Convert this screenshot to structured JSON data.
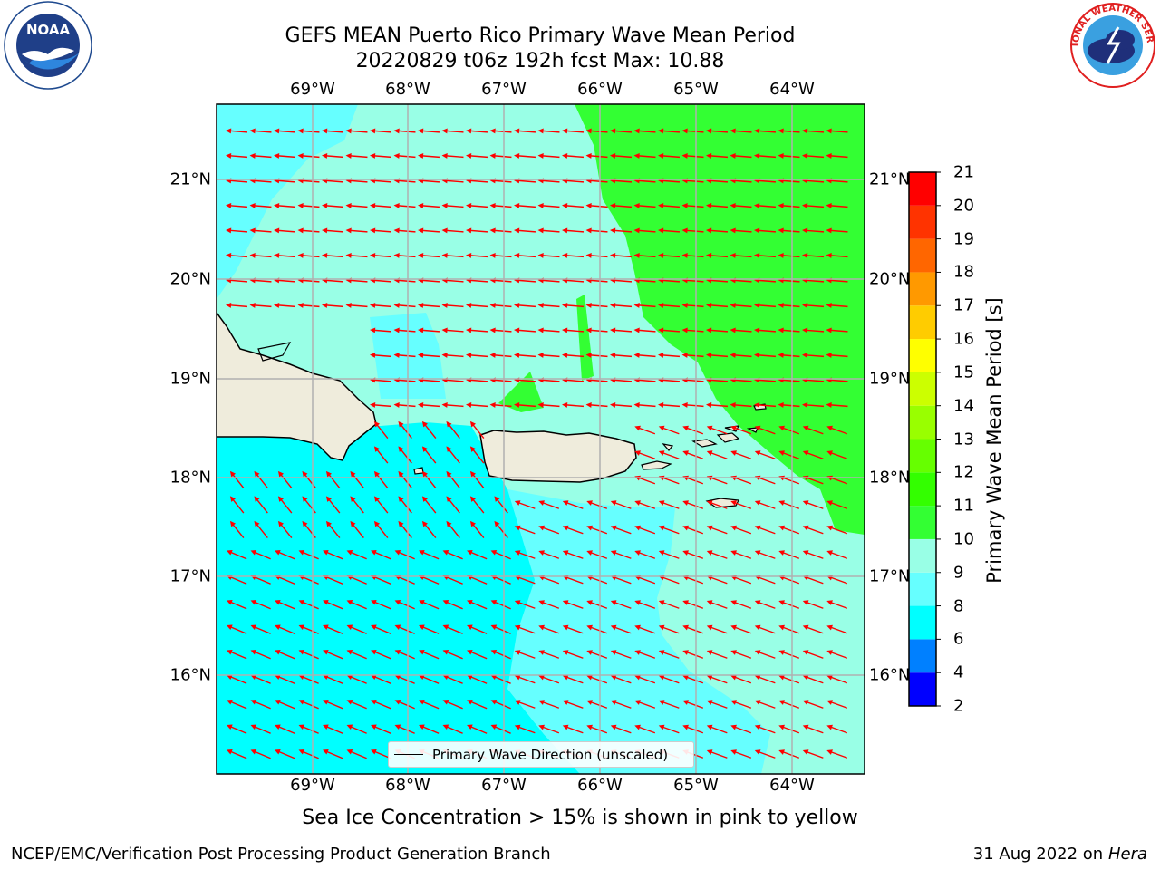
{
  "title": {
    "line1": "GEFS MEAN Puerto Rico Primary Wave Mean Period",
    "line2": "20220829 t06z 192h fcst   Max: 10.88"
  },
  "map": {
    "lon_ticks": [
      "69°W",
      "68°W",
      "67°W",
      "66°W",
      "65°W",
      "64°W"
    ],
    "lat_ticks": [
      "21°N",
      "20°N",
      "19°N",
      "18°N",
      "17°N",
      "16°N"
    ],
    "land_color": "#efecdc",
    "arrow_color": "#ff0000",
    "grid_color": "#b0b0b0",
    "legend_label": "Primary Wave Direction (unscaled)"
  },
  "colorbar": {
    "title": "Primary Wave Mean Period [s]",
    "levels": [
      "2",
      "4",
      "6",
      "8",
      "9",
      "10",
      "11",
      "12",
      "13",
      "14",
      "15",
      "16",
      "17",
      "18",
      "19",
      "20",
      "21"
    ],
    "colors": [
      "#0000ff",
      "#0080ff",
      "#00ffff",
      "#66ffff",
      "#99ffe6",
      "#33ff33",
      "#33ff00",
      "#66ff00",
      "#99ff00",
      "#ccff00",
      "#ffff00",
      "#ffcc00",
      "#ff9900",
      "#ff6600",
      "#ff3300",
      "#ff0000"
    ]
  },
  "subtitle": "Sea Ice Concentration > 15% is shown in pink to yellow",
  "footer": {
    "left": "NCEP/EMC/Verification Post Processing Product Generation Branch",
    "date": "31 Aug 2022 on",
    "machine": "Hera"
  },
  "logos": {
    "noaa": "NOAA",
    "nws_text": "NATIONAL WEATHER SERVICE"
  }
}
